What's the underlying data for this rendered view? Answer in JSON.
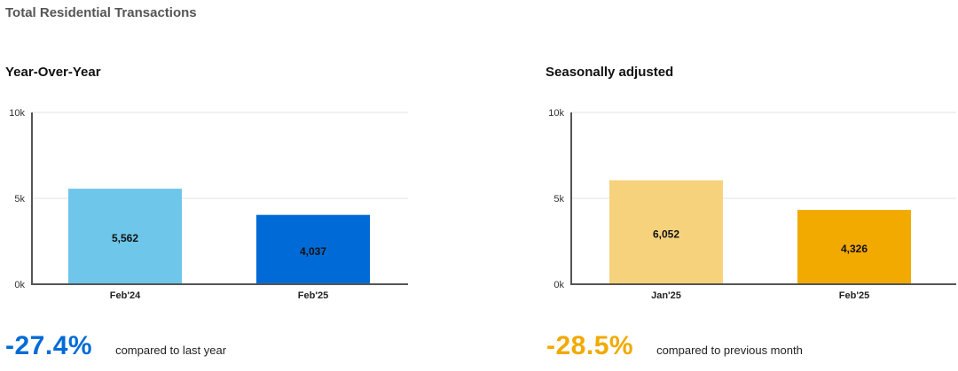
{
  "page_title": "Total Residential Transactions",
  "chart_data": [
    {
      "type": "bar",
      "title": "Year-Over-Year",
      "categories": [
        "Feb'24",
        "Feb'25"
      ],
      "values": [
        5562,
        4037
      ],
      "value_labels": [
        "5,562",
        "4,037"
      ],
      "colors": [
        "#6ec6ea",
        "#006bd6"
      ],
      "ylim": [
        0,
        10000
      ],
      "yticks": [
        0,
        5000,
        10000
      ],
      "ytick_labels": [
        "0k",
        "5k",
        "10k"
      ],
      "grid": true,
      "change": "-27.4%",
      "change_color": "#006bd6",
      "comparison_text": "compared to last year"
    },
    {
      "type": "bar",
      "title": "Seasonally adjusted",
      "categories": [
        "Jan'25",
        "Feb'25"
      ],
      "values": [
        6052,
        4326
      ],
      "value_labels": [
        "6,052",
        "4,326"
      ],
      "colors": [
        "#f6d27c",
        "#f2a900"
      ],
      "ylim": [
        0,
        10000
      ],
      "yticks": [
        0,
        5000,
        10000
      ],
      "ytick_labels": [
        "0k",
        "5k",
        "10k"
      ],
      "grid": true,
      "change": "-28.5%",
      "change_color": "#f2a900",
      "comparison_text": "compared to previous month"
    }
  ]
}
